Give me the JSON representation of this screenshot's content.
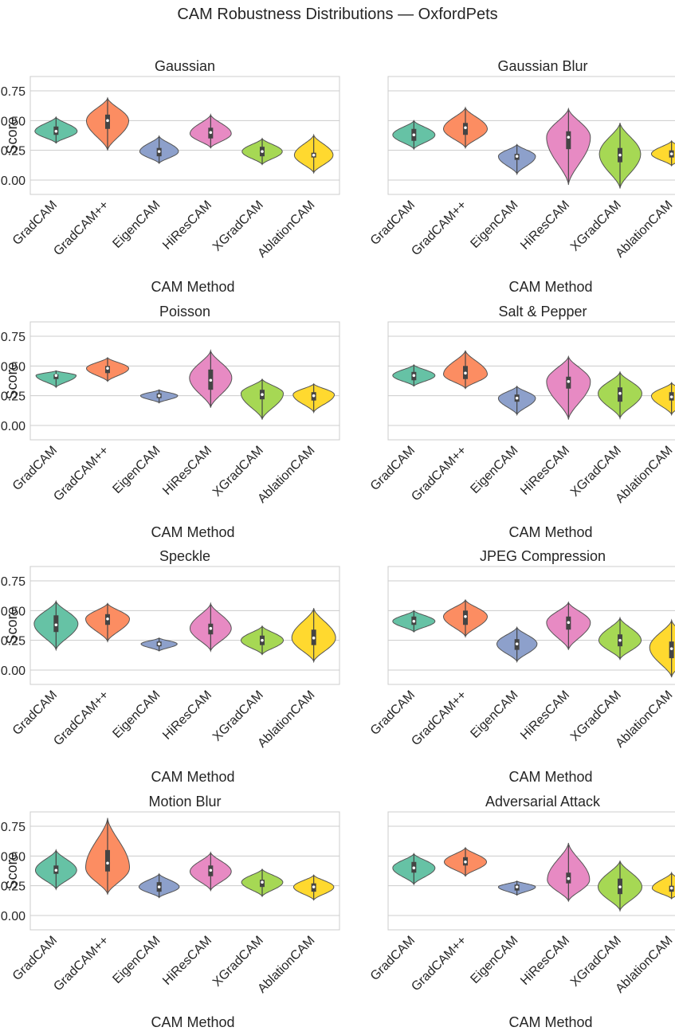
{
  "figure_title": "CAM Robustness Distributions — OxfordPets",
  "colors": {
    "methods": [
      "#66c2a5",
      "#fc8d62",
      "#8da0cb",
      "#e78ac3",
      "#a6d854",
      "#ffd92f"
    ],
    "grid": "#cccccc",
    "box": "#444444",
    "median": "#ffffff",
    "text": "#262626"
  },
  "chart_data": [
    {
      "type": "violin",
      "title": "Gaussian",
      "xlabel": "CAM Method",
      "ylabel": "Score",
      "categories": [
        "GradCAM",
        "GradCAM++",
        "EigenCAM",
        "HiResCAM",
        "XGradCAM",
        "AblationCAM"
      ],
      "ylim": [
        -0.12,
        0.87
      ],
      "yticks": [
        0.0,
        0.25,
        0.5,
        0.75
      ],
      "ytick_labels": [
        "0.00",
        "0.25",
        "0.50",
        "0.75"
      ],
      "show_ytick_labels": true,
      "series": [
        {
          "name": "GradCAM",
          "min": 0.31,
          "max": 0.53,
          "q1": 0.38,
          "median": 0.41,
          "q3": 0.45,
          "mode": 0.41,
          "width": 0.82
        },
        {
          "name": "GradCAM++",
          "min": 0.25,
          "max": 0.69,
          "q1": 0.43,
          "median": 0.5,
          "q3": 0.55,
          "mode": 0.5,
          "width": 0.82
        },
        {
          "name": "EigenCAM",
          "min": 0.14,
          "max": 0.37,
          "q1": 0.2,
          "median": 0.24,
          "q3": 0.27,
          "mode": 0.24,
          "width": 0.75
        },
        {
          "name": "HiResCAM",
          "min": 0.27,
          "max": 0.55,
          "q1": 0.35,
          "median": 0.4,
          "q3": 0.44,
          "mode": 0.39,
          "width": 0.8
        },
        {
          "name": "XGradCAM",
          "min": 0.13,
          "max": 0.35,
          "q1": 0.2,
          "median": 0.24,
          "q3": 0.28,
          "mode": 0.24,
          "width": 0.78
        },
        {
          "name": "AblationCAM",
          "min": 0.06,
          "max": 0.38,
          "q1": 0.19,
          "median": 0.21,
          "q3": 0.23,
          "mode": 0.21,
          "width": 0.75
        }
      ]
    },
    {
      "type": "violin",
      "title": "Gaussian Blur",
      "xlabel": "CAM Method",
      "ylabel": "",
      "categories": [
        "GradCAM",
        "GradCAM++",
        "EigenCAM",
        "HiResCAM",
        "XGradCAM",
        "AblationCAM"
      ],
      "ylim": [
        -0.12,
        0.87
      ],
      "yticks": [
        0.0,
        0.25,
        0.5,
        0.75
      ],
      "ytick_labels": [
        "0.00",
        "0.25",
        "0.50",
        "0.75"
      ],
      "show_ytick_labels": false,
      "series": [
        {
          "name": "GradCAM",
          "min": 0.26,
          "max": 0.5,
          "q1": 0.33,
          "median": 0.38,
          "q3": 0.43,
          "mode": 0.38,
          "width": 0.82
        },
        {
          "name": "GradCAM++",
          "min": 0.27,
          "max": 0.61,
          "q1": 0.38,
          "median": 0.44,
          "q3": 0.48,
          "mode": 0.43,
          "width": 0.85
        },
        {
          "name": "EigenCAM",
          "min": 0.05,
          "max": 0.3,
          "q1": 0.17,
          "median": 0.2,
          "q3": 0.22,
          "mode": 0.2,
          "width": 0.72
        },
        {
          "name": "HiResCAM",
          "min": -0.04,
          "max": 0.6,
          "q1": 0.26,
          "median": 0.36,
          "q3": 0.41,
          "mode": 0.36,
          "width": 0.85
        },
        {
          "name": "XGradCAM",
          "min": -0.07,
          "max": 0.48,
          "q1": 0.15,
          "median": 0.21,
          "q3": 0.27,
          "mode": 0.22,
          "width": 0.8
        },
        {
          "name": "AblationCAM",
          "min": 0.12,
          "max": 0.33,
          "q1": 0.19,
          "median": 0.22,
          "q3": 0.25,
          "mode": 0.22,
          "width": 0.78
        }
      ]
    },
    {
      "type": "violin",
      "title": "Poisson",
      "xlabel": "CAM Method",
      "ylabel": "Score",
      "categories": [
        "GradCAM",
        "GradCAM++",
        "EigenCAM",
        "HiResCAM",
        "XGradCAM",
        "AblationCAM"
      ],
      "ylim": [
        -0.12,
        0.87
      ],
      "yticks": [
        0.0,
        0.25,
        0.5,
        0.75
      ],
      "ytick_labels": [
        "0.00",
        "0.25",
        "0.50",
        "0.75"
      ],
      "show_ytick_labels": true,
      "series": [
        {
          "name": "GradCAM",
          "min": 0.32,
          "max": 0.46,
          "q1": 0.39,
          "median": 0.42,
          "q3": 0.43,
          "mode": 0.42,
          "width": 0.78
        },
        {
          "name": "GradCAM++",
          "min": 0.37,
          "max": 0.57,
          "q1": 0.44,
          "median": 0.48,
          "q3": 0.5,
          "mode": 0.48,
          "width": 0.82
        },
        {
          "name": "EigenCAM",
          "min": 0.19,
          "max": 0.3,
          "q1": 0.23,
          "median": 0.25,
          "q3": 0.27,
          "mode": 0.25,
          "width": 0.72
        },
        {
          "name": "HiResCAM",
          "min": 0.15,
          "max": 0.63,
          "q1": 0.3,
          "median": 0.38,
          "q3": 0.47,
          "mode": 0.4,
          "width": 0.82
        },
        {
          "name": "XGradCAM",
          "min": 0.05,
          "max": 0.39,
          "q1": 0.22,
          "median": 0.26,
          "q3": 0.3,
          "mode": 0.27,
          "width": 0.82
        },
        {
          "name": "AblationCAM",
          "min": 0.11,
          "max": 0.35,
          "q1": 0.21,
          "median": 0.25,
          "q3": 0.28,
          "mode": 0.26,
          "width": 0.8
        }
      ]
    },
    {
      "type": "violin",
      "title": "Salt & Pepper",
      "xlabel": "CAM Method",
      "ylabel": "",
      "categories": [
        "GradCAM",
        "GradCAM++",
        "EigenCAM",
        "HiResCAM",
        "XGradCAM",
        "AblationCAM"
      ],
      "ylim": [
        -0.12,
        0.87
      ],
      "yticks": [
        0.0,
        0.25,
        0.5,
        0.75
      ],
      "ytick_labels": [
        "0.00",
        "0.25",
        "0.50",
        "0.75"
      ],
      "show_ytick_labels": false,
      "series": [
        {
          "name": "GradCAM",
          "min": 0.33,
          "max": 0.51,
          "q1": 0.38,
          "median": 0.42,
          "q3": 0.45,
          "mode": 0.42,
          "width": 0.82
        },
        {
          "name": "GradCAM++",
          "min": 0.31,
          "max": 0.63,
          "q1": 0.39,
          "median": 0.44,
          "q3": 0.5,
          "mode": 0.43,
          "width": 0.85
        },
        {
          "name": "EigenCAM",
          "min": 0.09,
          "max": 0.33,
          "q1": 0.2,
          "median": 0.23,
          "q3": 0.26,
          "mode": 0.23,
          "width": 0.72
        },
        {
          "name": "HiResCAM",
          "min": 0.05,
          "max": 0.58,
          "q1": 0.31,
          "median": 0.37,
          "q3": 0.41,
          "mode": 0.37,
          "width": 0.85
        },
        {
          "name": "XGradCAM",
          "min": 0.06,
          "max": 0.45,
          "q1": 0.2,
          "median": 0.27,
          "q3": 0.32,
          "mode": 0.27,
          "width": 0.85
        },
        {
          "name": "AblationCAM",
          "min": 0.09,
          "max": 0.36,
          "q1": 0.21,
          "median": 0.24,
          "q3": 0.28,
          "mode": 0.25,
          "width": 0.78
        }
      ]
    },
    {
      "type": "violin",
      "title": "Speckle",
      "xlabel": "CAM Method",
      "ylabel": "Score",
      "categories": [
        "GradCAM",
        "GradCAM++",
        "EigenCAM",
        "HiResCAM",
        "XGradCAM",
        "AblationCAM"
      ],
      "ylim": [
        -0.12,
        0.87
      ],
      "yticks": [
        0.0,
        0.25,
        0.5,
        0.75
      ],
      "ytick_labels": [
        "0.00",
        "0.25",
        "0.50",
        "0.75"
      ],
      "show_ytick_labels": true,
      "series": [
        {
          "name": "GradCAM",
          "min": 0.17,
          "max": 0.58,
          "q1": 0.32,
          "median": 0.38,
          "q3": 0.46,
          "mode": 0.39,
          "width": 0.85
        },
        {
          "name": "GradCAM++",
          "min": 0.24,
          "max": 0.56,
          "q1": 0.38,
          "median": 0.43,
          "q3": 0.47,
          "mode": 0.43,
          "width": 0.85
        },
        {
          "name": "EigenCAM",
          "min": 0.16,
          "max": 0.27,
          "q1": 0.2,
          "median": 0.22,
          "q3": 0.24,
          "mode": 0.22,
          "width": 0.7
        },
        {
          "name": "HiResCAM",
          "min": 0.16,
          "max": 0.56,
          "q1": 0.3,
          "median": 0.35,
          "q3": 0.39,
          "mode": 0.35,
          "width": 0.8
        },
        {
          "name": "XGradCAM",
          "min": 0.13,
          "max": 0.37,
          "q1": 0.21,
          "median": 0.25,
          "q3": 0.29,
          "mode": 0.25,
          "width": 0.82
        },
        {
          "name": "AblationCAM",
          "min": 0.07,
          "max": 0.52,
          "q1": 0.21,
          "median": 0.27,
          "q3": 0.34,
          "mode": 0.27,
          "width": 0.85
        }
      ]
    },
    {
      "type": "violin",
      "title": "JPEG Compression",
      "xlabel": "CAM Method",
      "ylabel": "",
      "categories": [
        "GradCAM",
        "GradCAM++",
        "EigenCAM",
        "HiResCAM",
        "XGradCAM",
        "AblationCAM"
      ],
      "ylim": [
        -0.12,
        0.87
      ],
      "yticks": [
        0.0,
        0.25,
        0.5,
        0.75
      ],
      "ytick_labels": [
        "0.00",
        "0.25",
        "0.50",
        "0.75"
      ],
      "show_ytick_labels": false,
      "series": [
        {
          "name": "GradCAM",
          "min": 0.32,
          "max": 0.5,
          "q1": 0.38,
          "median": 0.41,
          "q3": 0.45,
          "mode": 0.41,
          "width": 0.82
        },
        {
          "name": "GradCAM++",
          "min": 0.28,
          "max": 0.59,
          "q1": 0.38,
          "median": 0.45,
          "q3": 0.5,
          "mode": 0.45,
          "width": 0.85
        },
        {
          "name": "EigenCAM",
          "min": 0.07,
          "max": 0.36,
          "q1": 0.17,
          "median": 0.22,
          "q3": 0.26,
          "mode": 0.22,
          "width": 0.78
        },
        {
          "name": "HiResCAM",
          "min": 0.17,
          "max": 0.57,
          "q1": 0.34,
          "median": 0.4,
          "q3": 0.45,
          "mode": 0.4,
          "width": 0.85
        },
        {
          "name": "XGradCAM",
          "min": 0.09,
          "max": 0.44,
          "q1": 0.2,
          "median": 0.25,
          "q3": 0.3,
          "mode": 0.25,
          "width": 0.82
        },
        {
          "name": "AblationCAM",
          "min": -0.06,
          "max": 0.42,
          "q1": 0.1,
          "median": 0.18,
          "q3": 0.24,
          "mode": 0.19,
          "width": 0.85
        }
      ]
    },
    {
      "type": "violin",
      "title": "Motion Blur",
      "xlabel": "CAM Method",
      "ylabel": "Score",
      "categories": [
        "GradCAM",
        "GradCAM++",
        "EigenCAM",
        "HiResCAM",
        "XGradCAM",
        "AblationCAM"
      ],
      "ylim": [
        -0.12,
        0.87
      ],
      "yticks": [
        0.0,
        0.25,
        0.5,
        0.75
      ],
      "ytick_labels": [
        "0.00",
        "0.25",
        "0.50",
        "0.75"
      ],
      "show_ytick_labels": true,
      "series": [
        {
          "name": "GradCAM",
          "min": 0.22,
          "max": 0.55,
          "q1": 0.35,
          "median": 0.38,
          "q3": 0.42,
          "mode": 0.38,
          "width": 0.8
        },
        {
          "name": "GradCAM++",
          "min": 0.18,
          "max": 0.82,
          "q1": 0.37,
          "median": 0.44,
          "q3": 0.55,
          "mode": 0.4,
          "width": 0.85
        },
        {
          "name": "EigenCAM",
          "min": 0.15,
          "max": 0.35,
          "q1": 0.2,
          "median": 0.24,
          "q3": 0.28,
          "mode": 0.24,
          "width": 0.78
        },
        {
          "name": "HiResCAM",
          "min": 0.21,
          "max": 0.53,
          "q1": 0.33,
          "median": 0.38,
          "q3": 0.42,
          "mode": 0.37,
          "width": 0.8
        },
        {
          "name": "XGradCAM",
          "min": 0.16,
          "max": 0.39,
          "q1": 0.24,
          "median": 0.28,
          "q3": 0.3,
          "mode": 0.28,
          "width": 0.8
        },
        {
          "name": "AblationCAM",
          "min": 0.13,
          "max": 0.34,
          "q1": 0.2,
          "median": 0.24,
          "q3": 0.27,
          "mode": 0.24,
          "width": 0.78
        }
      ]
    },
    {
      "type": "violin",
      "title": "Adversarial Attack",
      "xlabel": "CAM Method",
      "ylabel": "",
      "categories": [
        "GradCAM",
        "GradCAM++",
        "EigenCAM",
        "HiResCAM",
        "XGradCAM",
        "AblationCAM"
      ],
      "ylim": [
        -0.12,
        0.87
      ],
      "yticks": [
        0.0,
        0.25,
        0.5,
        0.75
      ],
      "ytick_labels": [
        "0.00",
        "0.25",
        "0.50",
        "0.75"
      ],
      "show_ytick_labels": false,
      "series": [
        {
          "name": "GradCAM",
          "min": 0.26,
          "max": 0.52,
          "q1": 0.36,
          "median": 0.4,
          "q3": 0.45,
          "mode": 0.4,
          "width": 0.82
        },
        {
          "name": "GradCAM++",
          "min": 0.33,
          "max": 0.57,
          "q1": 0.42,
          "median": 0.45,
          "q3": 0.49,
          "mode": 0.45,
          "width": 0.82
        },
        {
          "name": "EigenCAM",
          "min": 0.17,
          "max": 0.29,
          "q1": 0.21,
          "median": 0.24,
          "q3": 0.26,
          "mode": 0.24,
          "width": 0.72
        },
        {
          "name": "HiResCAM",
          "min": 0.12,
          "max": 0.61,
          "q1": 0.27,
          "median": 0.31,
          "q3": 0.36,
          "mode": 0.3,
          "width": 0.82
        },
        {
          "name": "XGradCAM",
          "min": 0.04,
          "max": 0.46,
          "q1": 0.18,
          "median": 0.24,
          "q3": 0.31,
          "mode": 0.24,
          "width": 0.85
        },
        {
          "name": "AblationCAM",
          "min": 0.14,
          "max": 0.36,
          "q1": 0.2,
          "median": 0.23,
          "q3": 0.25,
          "mode": 0.23,
          "width": 0.75
        }
      ]
    }
  ]
}
